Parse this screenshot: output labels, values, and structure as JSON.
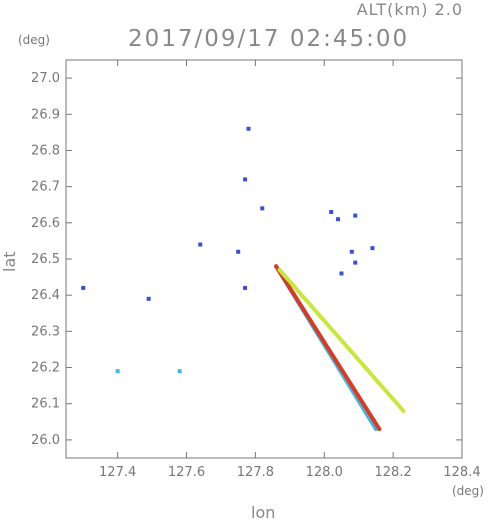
{
  "header": {
    "alt_label": "ALT(km) 2.0",
    "timestamp": "2017/09/17 02:45:00"
  },
  "axes": {
    "ylabel": "lat",
    "xlabel": "lon",
    "y_unit": "(deg)",
    "x_unit": "(deg)"
  },
  "chart_data": {
    "type": "scatter",
    "title": "2017/09/17 02:45:00",
    "xlabel": "lon",
    "ylabel": "lat",
    "xlim": [
      127.25,
      128.4
    ],
    "ylim": [
      25.95,
      27.05
    ],
    "x_ticks": [
      127.4,
      127.6,
      127.8,
      128.0,
      128.2,
      128.4
    ],
    "x_tick_labels": [
      "127.4",
      "127.6",
      "127.8",
      "128.0",
      "128.2",
      "128.4"
    ],
    "y_ticks": [
      26.0,
      26.1,
      26.2,
      26.3,
      26.4,
      26.5,
      26.6,
      26.7,
      26.8,
      26.9,
      27.0
    ],
    "y_tick_labels": [
      "26.0",
      "26.1",
      "26.2",
      "26.3",
      "26.4",
      "26.5",
      "26.6",
      "26.7",
      "26.8",
      "26.9",
      "27.0"
    ],
    "grid": false,
    "colors": {
      "axis": "#777777",
      "blue": "#3a4fd8",
      "light_blue": "#3fb6e6",
      "yellow_green": "#c6e83a",
      "green": "#7ad94a",
      "orange": "#e8741e",
      "red": "#d93a20"
    },
    "points": [
      {
        "x": 127.3,
        "y": 26.42,
        "color": "blue"
      },
      {
        "x": 127.49,
        "y": 26.39,
        "color": "blue"
      },
      {
        "x": 127.4,
        "y": 26.19,
        "color": "light_blue"
      },
      {
        "x": 127.58,
        "y": 26.19,
        "color": "light_blue"
      },
      {
        "x": 127.78,
        "y": 26.86,
        "color": "blue"
      },
      {
        "x": 127.77,
        "y": 26.72,
        "color": "blue"
      },
      {
        "x": 127.82,
        "y": 26.64,
        "color": "blue"
      },
      {
        "x": 127.75,
        "y": 26.52,
        "color": "blue"
      },
      {
        "x": 127.77,
        "y": 26.42,
        "color": "blue"
      },
      {
        "x": 127.64,
        "y": 26.54,
        "color": "blue"
      },
      {
        "x": 128.02,
        "y": 26.63,
        "color": "blue"
      },
      {
        "x": 128.04,
        "y": 26.61,
        "color": "blue"
      },
      {
        "x": 128.09,
        "y": 26.62,
        "color": "blue"
      },
      {
        "x": 128.08,
        "y": 26.52,
        "color": "blue"
      },
      {
        "x": 128.09,
        "y": 26.49,
        "color": "blue"
      },
      {
        "x": 128.14,
        "y": 26.53,
        "color": "blue"
      },
      {
        "x": 128.05,
        "y": 26.46,
        "color": "blue"
      }
    ],
    "streaks": [
      {
        "from": [
          127.86,
          26.48
        ],
        "to": [
          128.15,
          26.03
        ],
        "color": "light_blue"
      },
      {
        "from": [
          127.86,
          26.48
        ],
        "to": [
          128.16,
          26.03
        ],
        "color": "red"
      },
      {
        "from": [
          127.87,
          26.47
        ],
        "to": [
          128.23,
          26.08
        ],
        "color": "yellow_green"
      }
    ]
  }
}
